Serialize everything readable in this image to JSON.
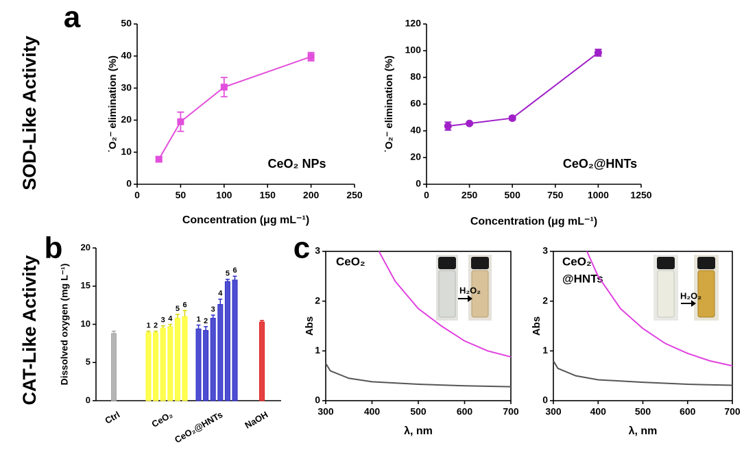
{
  "row_labels": [
    "SOD-Like Activity",
    "CAT-Like Activity"
  ],
  "panel_labels": [
    "a",
    "b",
    "c"
  ],
  "chart_data": [
    {
      "type": "line",
      "xlabel": "Concentration (μg mL⁻¹)",
      "ylabel": "˙O₂⁻ elimination (%)",
      "xlim": [
        0,
        250
      ],
      "xticks": [
        0,
        50,
        100,
        150,
        200,
        250
      ],
      "ylim": [
        0,
        50
      ],
      "yticks": [
        0,
        10,
        20,
        30,
        40,
        50
      ],
      "annotations": [
        "CeO₂ NPs"
      ],
      "series": [
        {
          "color": "#e24fdc",
          "marker": "square",
          "x": [
            25,
            50,
            100,
            200
          ],
          "values": [
            7.8,
            19.5,
            30.3,
            39.8
          ],
          "errors": [
            0.5,
            3,
            3,
            1.3
          ]
        }
      ]
    },
    {
      "type": "line",
      "xlabel": "Concentration (μg mL⁻¹)",
      "ylabel": "˙O₂⁻ elimination (%)",
      "xlim": [
        0,
        1250
      ],
      "xticks": [
        0,
        250,
        500,
        750,
        1000,
        1250
      ],
      "ylim": [
        0,
        120
      ],
      "yticks": [
        0,
        20,
        40,
        60,
        80,
        100,
        120
      ],
      "annotations": [
        "CeO₂@HNTs"
      ],
      "series": [
        {
          "color": "#a020c8",
          "marker": "circle",
          "x": [
            125,
            250,
            500,
            1000
          ],
          "values": [
            43.5,
            45.5,
            49.5,
            98.5
          ],
          "errors": [
            3,
            1,
            1.5,
            2.5
          ]
        }
      ]
    },
    {
      "type": "bar",
      "ylabel": "Dissolved oxygen (mg L⁻¹)",
      "ylim": [
        0,
        20
      ],
      "yticks": [
        0,
        5,
        10,
        15,
        20
      ],
      "groups": [
        {
          "label": "Ctrl",
          "color": "#a8a8a8",
          "values": [
            8.8
          ],
          "errors": [
            0.3
          ]
        },
        {
          "label": "CeO₂",
          "color": "#ffff33",
          "values": [
            8.9,
            8.9,
            9.5,
            9.7,
            10.8,
            11.0
          ],
          "errors": [
            0.2,
            0.2,
            0.3,
            0.3,
            0.5,
            0.8
          ],
          "bar_labels": [
            "1",
            "2",
            "3",
            "4",
            "5",
            "6"
          ]
        },
        {
          "label": "CeO₂@HNTs",
          "color": "#2f2fc9",
          "values": [
            9.4,
            9.2,
            10.8,
            12.6,
            15.6,
            15.8
          ],
          "errors": [
            0.5,
            0.5,
            0.4,
            0.7,
            0.3,
            0.5
          ],
          "bar_labels": [
            "1",
            "2",
            "3",
            "4",
            "5",
            "6"
          ]
        },
        {
          "label": "NaOH",
          "color": "#e02020",
          "values": [
            10.3
          ],
          "errors": [
            0.2
          ]
        }
      ]
    },
    {
      "type": "line",
      "xlabel": "λ, nm",
      "ylabel": "Abs",
      "xlim": [
        300,
        700
      ],
      "xticks": [
        300,
        400,
        500,
        600,
        700
      ],
      "ylim": [
        0,
        3
      ],
      "yticks": [
        0,
        1,
        2,
        3
      ],
      "annotations": [
        "CeO₂",
        "H₂O₂"
      ],
      "series": [
        {
          "color": "#e040e0",
          "x": [
            415,
            450,
            500,
            550,
            600,
            650,
            700
          ],
          "values": [
            3.0,
            2.4,
            1.85,
            1.5,
            1.2,
            1.0,
            0.88
          ]
        },
        {
          "color": "#555555",
          "x": [
            300,
            310,
            350,
            400,
            500,
            600,
            700
          ],
          "values": [
            0.75,
            0.6,
            0.45,
            0.38,
            0.33,
            0.3,
            0.28
          ]
        }
      ]
    },
    {
      "type": "line",
      "xlabel": "λ, nm",
      "ylabel": "Abs",
      "xlim": [
        300,
        700
      ],
      "xticks": [
        300,
        400,
        500,
        600,
        700
      ],
      "ylim": [
        0,
        3
      ],
      "yticks": [
        0,
        1,
        2,
        3
      ],
      "annotations": [
        "CeO₂",
        "@HNTs",
        "H₂O₂"
      ],
      "series": [
        {
          "color": "#e040e0",
          "x": [
            375,
            400,
            450,
            500,
            550,
            600,
            650,
            700
          ],
          "values": [
            3.0,
            2.5,
            1.85,
            1.45,
            1.15,
            0.95,
            0.8,
            0.7
          ]
        },
        {
          "color": "#555555",
          "x": [
            300,
            310,
            350,
            400,
            500,
            600,
            700
          ],
          "values": [
            0.8,
            0.65,
            0.5,
            0.42,
            0.37,
            0.33,
            0.31
          ]
        }
      ]
    }
  ]
}
